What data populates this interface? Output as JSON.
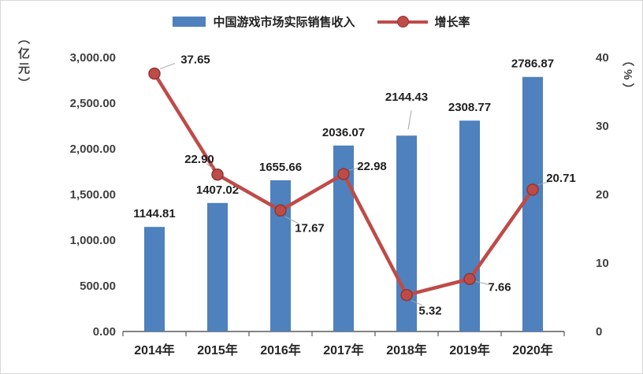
{
  "chart_data": {
    "type": "bar+line",
    "categories": [
      "2014年",
      "2015年",
      "2016年",
      "2017年",
      "2018年",
      "2019年",
      "2020年"
    ],
    "series": [
      {
        "name": "中国游戏市场实际销售收入",
        "type": "bar",
        "axis": "left",
        "color": "#4E81BD",
        "values": [
          1144.81,
          1407.02,
          1655.66,
          2036.07,
          2144.43,
          2308.77,
          2786.87
        ],
        "labels": [
          "1144.81",
          "1407.02",
          "1655.66",
          "2036.07",
          "2144.43",
          "2308.77",
          "2786.87"
        ]
      },
      {
        "name": "增长率",
        "type": "line",
        "axis": "right",
        "color": "#BE4B48",
        "marker_edge": "#8C3836",
        "values": [
          37.65,
          22.9,
          17.67,
          22.98,
          5.32,
          7.66,
          20.71
        ],
        "labels": [
          "37.65",
          "22.90",
          "17.67",
          "22.98",
          "5.32",
          "7.66",
          "20.71"
        ]
      }
    ],
    "left_axis": {
      "title": "（亿元）",
      "min": 0,
      "max": 3000,
      "ticks": [
        "0.00",
        "500.00",
        "1,000.00",
        "1,500.00",
        "2,000.00",
        "2,500.00",
        "3,000.00"
      ]
    },
    "right_axis": {
      "title": "（%）",
      "min": 0,
      "max": 40,
      "ticks": [
        "0",
        "10",
        "20",
        "30",
        "40"
      ]
    },
    "legend_position": "top",
    "grid": false,
    "leader_line_color": "#A6A6A6",
    "axis_line_color": "#595959",
    "text_color": "#1f1f1f",
    "tick_text_color": "#404040"
  }
}
